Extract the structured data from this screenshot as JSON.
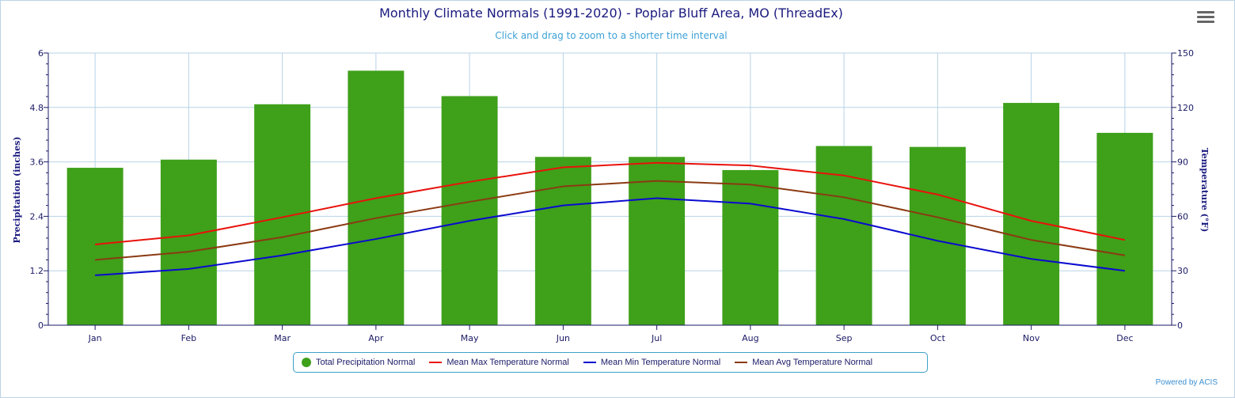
{
  "chart_data": {
    "type": "bar+line",
    "title": "Monthly Climate Normals (1991-2020) - Poplar Bluff Area, MO (ThreadEx)",
    "subtitle": "Click and drag to zoom to a shorter time interval",
    "categories": [
      "Jan",
      "Feb",
      "Mar",
      "Apr",
      "May",
      "Jun",
      "Jul",
      "Aug",
      "Sep",
      "Oct",
      "Nov",
      "Dec"
    ],
    "y_left": {
      "label": "Precipitation (inches)",
      "range": [
        0,
        6
      ],
      "ticks": [
        "0",
        "1.2",
        "2.4",
        "3.6",
        "4.8",
        "6"
      ]
    },
    "y_right": {
      "label": "Temperature (°F)",
      "range": [
        0,
        150
      ],
      "ticks": [
        "0",
        "30",
        "60",
        "90",
        "120",
        "150"
      ]
    },
    "grid": true,
    "legend_position": "bottom-center",
    "series": [
      {
        "name": "Total Precipitation Normal",
        "kind": "bar",
        "axis": "left",
        "color": "#3fa01a",
        "values": [
          3.47,
          3.65,
          4.87,
          5.61,
          5.05,
          3.71,
          3.71,
          3.42,
          3.95,
          3.93,
          4.9,
          4.24
        ]
      },
      {
        "name": "Mean Max Temperature Normal",
        "kind": "line",
        "axis": "right",
        "color": "#e8120c",
        "values": [
          44.5,
          49.5,
          59.5,
          70.0,
          79.0,
          87.0,
          89.5,
          88.0,
          82.5,
          72.0,
          57.5,
          47.0
        ]
      },
      {
        "name": "Mean Min Temperature Normal",
        "kind": "line",
        "axis": "right",
        "color": "#0a0ad0",
        "values": [
          27.5,
          31.0,
          38.5,
          47.5,
          57.5,
          66.0,
          70.0,
          67.0,
          58.5,
          46.5,
          36.5,
          30.0
        ]
      },
      {
        "name": "Mean Avg Temperature Normal",
        "kind": "line",
        "axis": "right",
        "color": "#8b3a12",
        "values": [
          36.0,
          40.5,
          48.5,
          59.0,
          68.0,
          76.5,
          79.5,
          77.5,
          70.5,
          59.5,
          47.0,
          38.5
        ]
      }
    ]
  },
  "footer": {
    "powered_by": "Powered by ACIS"
  },
  "menu": {
    "icon": "hamburger-menu-icon"
  }
}
